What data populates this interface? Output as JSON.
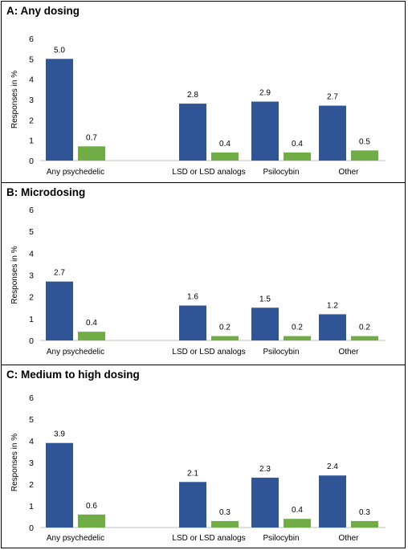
{
  "colors": {
    "series1": "#2f5597",
    "series2": "#70ad47",
    "axis": "#bfbfbf"
  },
  "chart_data": [
    {
      "type": "bar",
      "title": "A: Any dosing",
      "ylabel": "Responses in %",
      "ylim": [
        0,
        6
      ],
      "yticks": [
        "0",
        "1",
        "2",
        "3",
        "4",
        "5",
        "6"
      ],
      "categories": [
        "Any psychedelic",
        "",
        "LSD or LSD analogs",
        "Psilocybin",
        "Other"
      ],
      "series": [
        {
          "values": [
            5.0,
            null,
            2.8,
            2.9,
            2.7
          ],
          "labels": [
            "5.0",
            "",
            "2.8",
            "2.9",
            "2.7"
          ]
        },
        {
          "values": [
            0.7,
            null,
            0.4,
            0.4,
            0.5
          ],
          "labels": [
            "0.7",
            "",
            "0.4",
            "0.4",
            "0.5"
          ]
        }
      ]
    },
    {
      "type": "bar",
      "title": "B: Microdosing",
      "ylabel": "Responses in %",
      "ylim": [
        0,
        6
      ],
      "yticks": [
        "0",
        "1",
        "2",
        "3",
        "4",
        "5",
        "6"
      ],
      "categories": [
        "Any psychedelic",
        "",
        "LSD or LSD analogs",
        "Psilocybin",
        "Other"
      ],
      "series": [
        {
          "values": [
            2.7,
            null,
            1.6,
            1.5,
            1.2
          ],
          "labels": [
            "2.7",
            "",
            "1.6",
            "1.5",
            "1.2"
          ]
        },
        {
          "values": [
            0.4,
            null,
            0.2,
            0.2,
            0.2
          ],
          "labels": [
            "0.4",
            "",
            "0.2",
            "0.2",
            "0.2"
          ]
        }
      ]
    },
    {
      "type": "bar",
      "title": "C: Medium to high dosing",
      "ylabel": "Responses in %",
      "ylim": [
        0,
        6
      ],
      "yticks": [
        "0",
        "1",
        "2",
        "3",
        "4",
        "5",
        "6"
      ],
      "categories": [
        "Any psychedelic",
        "",
        "LSD or LSD analogs",
        "Psilocybin",
        "Other"
      ],
      "series": [
        {
          "values": [
            3.9,
            null,
            2.1,
            2.3,
            2.4
          ],
          "labels": [
            "3.9",
            "",
            "2.1",
            "2.3",
            "2.4"
          ]
        },
        {
          "values": [
            0.6,
            null,
            0.3,
            0.4,
            0.3
          ],
          "labels": [
            "0.6",
            "",
            "0.3",
            "0.4",
            "0.3"
          ]
        }
      ]
    }
  ]
}
